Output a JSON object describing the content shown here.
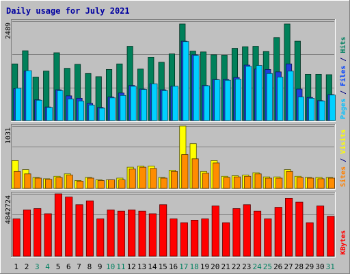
{
  "chart_data": {
    "type": "bar",
    "title": "Daily usage for July 2021",
    "days": [
      "1",
      "2",
      "3",
      "4",
      "5",
      "6",
      "7",
      "8",
      "9",
      "10",
      "11",
      "12",
      "13",
      "14",
      "15",
      "16",
      "17",
      "18",
      "19",
      "20",
      "21",
      "22",
      "23",
      "24",
      "25",
      "26",
      "27",
      "28",
      "29",
      "30",
      "31"
    ],
    "weekend_days": [
      "3",
      "4",
      "10",
      "11",
      "17",
      "18",
      "24",
      "25",
      "31"
    ],
    "panels": [
      {
        "id": "top",
        "max_label": "2489",
        "ymax": 2489,
        "right_labels": [
          {
            "text": "Pages",
            "color": "#00c0ff"
          },
          {
            "text": " / ",
            "color": "#000080"
          },
          {
            "text": "Files",
            "color": "#0040ff"
          },
          {
            "text": " / ",
            "color": "#000080"
          },
          {
            "text": "Hits",
            "color": "#008060"
          }
        ],
        "series": [
          {
            "name": "Hits",
            "color": "#00805a",
            "values": [
              1420,
              1750,
              1090,
              1240,
              1700,
              1310,
              1410,
              1180,
              1100,
              1280,
              1420,
              1860,
              1290,
              1590,
              1460,
              1670,
              2420,
              1740,
              1720,
              1650,
              1640,
              1810,
              1850,
              1860,
              1730,
              2080,
              2420,
              1990,
              1160,
              1160,
              1150
            ]
          },
          {
            "name": "Files",
            "color": "#1f3fd9",
            "values": [
              800,
              1240,
              520,
              340,
              770,
              620,
              560,
              430,
              330,
              590,
              690,
              880,
              790,
              920,
              770,
              860,
              1990,
              1650,
              880,
              1030,
              1030,
              1080,
              1390,
              1290,
              1280,
              1220,
              1420,
              790,
              580,
              500,
              650
            ]
          },
          {
            "name": "Pages",
            "color": "#00d0ff",
            "values": [
              810,
              1250,
              510,
              330,
              750,
              540,
              490,
              390,
              310,
              570,
              630,
              860,
              780,
              920,
              750,
              860,
              1980,
              1630,
              870,
              1020,
              1010,
              1040,
              1360,
              1380,
              1180,
              1090,
              1240,
              590,
              560,
              490,
              640
            ]
          }
        ]
      },
      {
        "id": "middle",
        "max_label": "1031",
        "ymax": 1031,
        "right_labels": [
          {
            "text": "Sites",
            "color": "#ff8000"
          },
          {
            "text": " / ",
            "color": "#000080"
          },
          {
            "text": "Visits",
            "color": "#ffff00"
          }
        ],
        "series": [
          {
            "name": "Visits",
            "color": "#ffff00",
            "values": [
              460,
              310,
              180,
              160,
              200,
              240,
              130,
              180,
              140,
              140,
              170,
              350,
              370,
              370,
              180,
              300,
              1031,
              740,
              280,
              460,
              200,
              210,
              220,
              260,
              190,
              190,
              310,
              200,
              180,
              180,
              180
            ]
          },
          {
            "name": "Sites",
            "color": "#ff8c00",
            "values": [
              280,
              240,
              170,
              150,
              180,
              220,
              120,
              170,
              130,
              140,
              140,
              320,
              350,
              330,
              170,
              280,
              560,
              490,
              250,
              420,
              180,
              190,
              200,
              240,
              170,
              170,
              280,
              180,
              170,
              160,
              170
            ]
          }
        ]
      },
      {
        "id": "bottom",
        "max_label": "4842724",
        "ymax": 4842724,
        "right_labels": [
          {
            "text": "KBytes",
            "color": "#ff0000"
          }
        ],
        "series": [
          {
            "name": "KBytes",
            "color": "#ff0000",
            "values": [
              2900000,
              3600000,
              3700000,
              3300000,
              4842724,
              4600000,
              4000000,
              4300000,
              2900000,
              3600000,
              3500000,
              3600000,
              3500000,
              3300000,
              4000000,
              2900000,
              2600000,
              2800000,
              2900000,
              3900000,
              2600000,
              3700000,
              4000000,
              3500000,
              2900000,
              3800000,
              4500000,
              4200000,
              2600000,
              3900000,
              3100000
            ]
          }
        ]
      }
    ]
  }
}
